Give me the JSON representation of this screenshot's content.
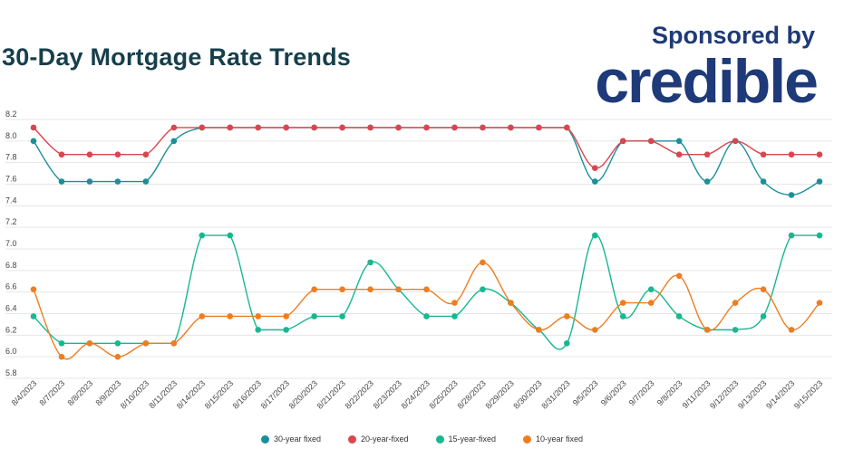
{
  "header": {
    "title": "30-Day Mortgage Rate Trends",
    "sponsor_line": "Sponsored by",
    "sponsor_brand": "credible"
  },
  "chart_data": {
    "type": "line",
    "categories": [
      "8/4/2023",
      "8/7/2023",
      "8/8/2023",
      "8/9/2023",
      "8/10/2023",
      "8/11/2023",
      "8/14/2023",
      "8/15/2023",
      "8/16/2023",
      "8/17/2023",
      "8/20/2023",
      "8/21/2023",
      "8/22/2023",
      "8/23/2023",
      "8/24/2023",
      "8/25/2023",
      "8/28/2023",
      "8/29/2023",
      "8/30/2023",
      "8/31/2023",
      "9/5/2023",
      "9/6/2023",
      "9/7/2023",
      "9/8/2023",
      "9/11/2023",
      "9/12/2023",
      "9/13/2023",
      "9/14/2023",
      "9/15/2023"
    ],
    "y_ticks": [
      5.8,
      6.0,
      6.2,
      6.4,
      6.6,
      6.8,
      7.0,
      7.2,
      7.4,
      7.6,
      7.8,
      8.0,
      8.2
    ],
    "y_tick_labels": [
      "5.8",
      "6.0",
      "6.2",
      "6.4",
      "6.6",
      "6.8",
      "7.0",
      "7.2",
      "7.4",
      "7.6",
      "7.8",
      "8.0",
      "8.2"
    ],
    "ylim": [
      5.8,
      8.2
    ],
    "grid": true,
    "legend_position": "bottom",
    "series": [
      {
        "name": "30-year fixed",
        "color": "#1a8f9a",
        "values": [
          8.0,
          7.625,
          7.625,
          7.625,
          7.625,
          8.0,
          8.125,
          8.125,
          8.125,
          8.125,
          8.125,
          8.125,
          8.125,
          8.125,
          8.125,
          8.125,
          8.125,
          8.125,
          8.125,
          8.125,
          7.625,
          8.0,
          8.0,
          8.0,
          7.625,
          8.0,
          7.625,
          7.5,
          7.625
        ]
      },
      {
        "name": "20-year-fixed",
        "color": "#d9464f",
        "values": [
          8.125,
          7.875,
          7.875,
          7.875,
          7.875,
          8.125,
          8.125,
          8.125,
          8.125,
          8.125,
          8.125,
          8.125,
          8.125,
          8.125,
          8.125,
          8.125,
          8.125,
          8.125,
          8.125,
          8.125,
          7.75,
          8.0,
          8.0,
          7.875,
          7.875,
          8.0,
          7.875,
          7.875,
          7.875
        ]
      },
      {
        "name": "15-year-fixed",
        "color": "#17b890",
        "values": [
          6.375,
          6.125,
          6.125,
          6.125,
          6.125,
          6.125,
          7.125,
          7.125,
          6.25,
          6.25,
          6.375,
          6.375,
          6.875,
          6.625,
          6.375,
          6.375,
          6.625,
          6.5,
          6.25,
          6.125,
          7.125,
          6.375,
          6.625,
          6.375,
          6.25,
          6.25,
          6.375,
          7.125,
          7.125
        ]
      },
      {
        "name": "10-year fixed",
        "color": "#ee7d22",
        "values": [
          6.625,
          6.0,
          6.125,
          6.0,
          6.125,
          6.125,
          6.375,
          6.375,
          6.375,
          6.375,
          6.625,
          6.625,
          6.625,
          6.625,
          6.625,
          6.5,
          6.875,
          6.5,
          6.25,
          6.375,
          6.25,
          6.5,
          6.5,
          6.75,
          6.25,
          6.5,
          6.625,
          6.25,
          6.5
        ]
      }
    ]
  }
}
